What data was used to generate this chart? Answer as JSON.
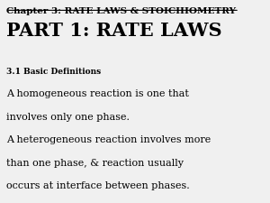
{
  "bg_color": "#f0f0f0",
  "title_line1": "Chapter 3: RATE LAWS & STOICHIOMETRY",
  "title_line2": "PART 1: RATE LAWS",
  "subtitle": "3.1 Basic Definitions",
  "body_lines": [
    "A homogeneous reaction is one that",
    "involves only one phase.",
    "A heterogeneous reaction involves more",
    "than one phase, & reaction usually",
    "occurs at interface between phases."
  ],
  "text_color": "#000000"
}
